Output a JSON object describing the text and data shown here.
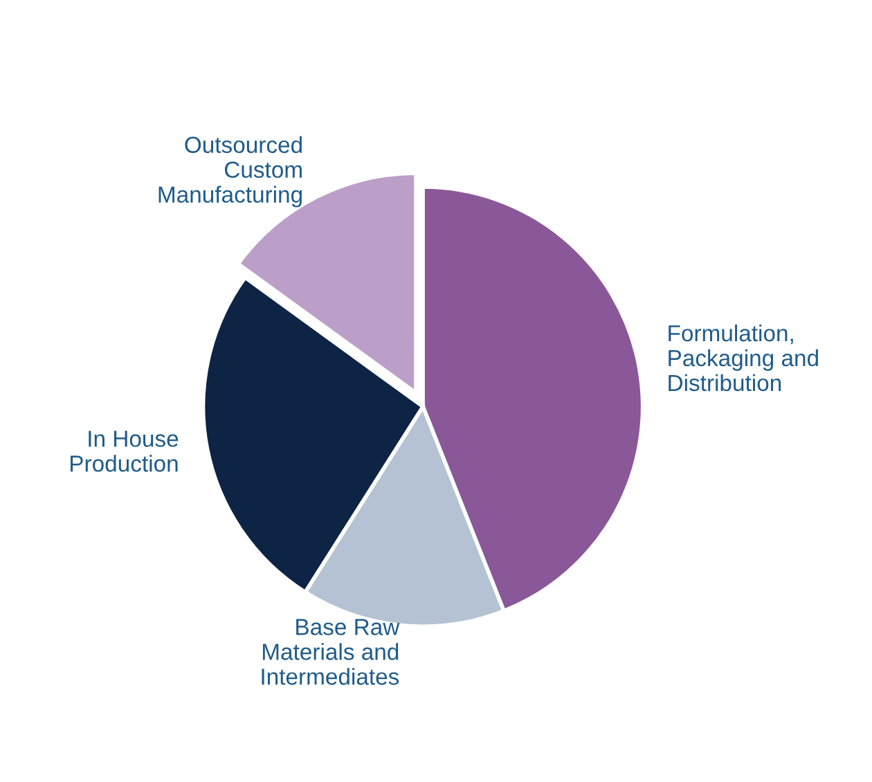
{
  "chart_data": {
    "type": "pie",
    "categories": [
      "Formulation,\nPackaging and\nDistribution",
      "Base Raw\nMaterials and\nIntermediates",
      "In House\nProduction",
      "Outsourced\nCustom\nManufacturing"
    ],
    "values": [
      44,
      15,
      26,
      15
    ],
    "colors": [
      "#8a5898",
      "#b4c2d3",
      "#0e2445",
      "#bb9fc8"
    ],
    "legend": false
  }
}
